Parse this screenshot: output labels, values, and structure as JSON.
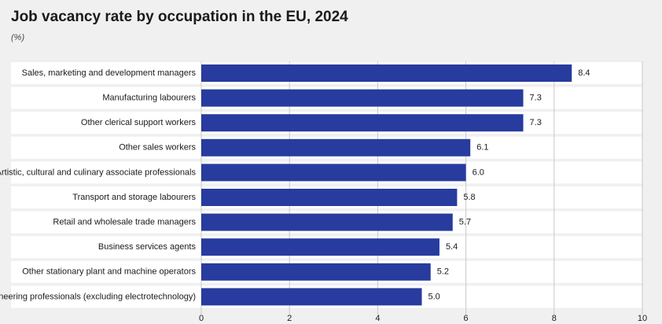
{
  "chart_data": {
    "type": "bar",
    "orientation": "horizontal",
    "title": "Job vacancy rate by occupation in the EU, 2024",
    "subtitle": "(%)",
    "categories": [
      "Sales, marketing and development managers",
      "Manufacturing labourers",
      "Other clerical support workers",
      "Other sales workers",
      "Artistic, cultural and culinary associate professionals",
      "Transport and storage labourers",
      "Retail and wholesale trade managers",
      "Business services agents",
      "Other stationary plant and machine operators",
      "Engineering professionals (excluding electrotechnology)"
    ],
    "values": [
      8.4,
      7.3,
      7.3,
      6.1,
      6.0,
      5.8,
      5.7,
      5.4,
      5.2,
      5.0
    ],
    "value_labels": [
      "8.4",
      "7.3",
      "7.3",
      "6.1",
      "6.0",
      "5.8",
      "5.7",
      "5.4",
      "5.2",
      "5.0"
    ],
    "color": "#283b9e",
    "xlim": [
      0,
      10
    ],
    "xticks": [
      0,
      2,
      4,
      6,
      8,
      10
    ],
    "grid": true
  }
}
